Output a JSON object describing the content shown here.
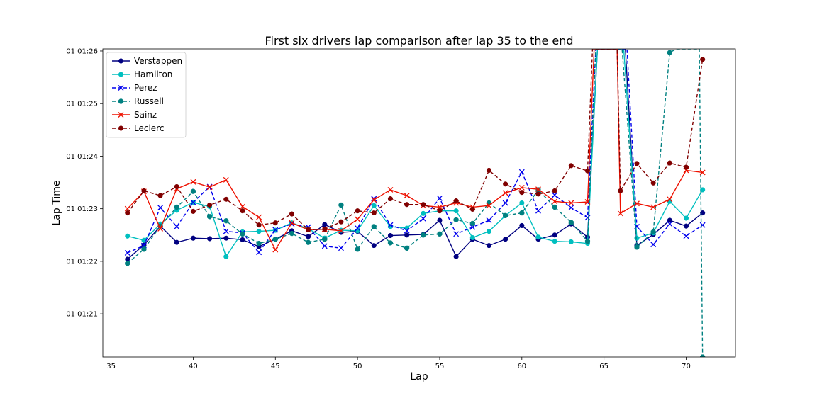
{
  "chart_data": {
    "type": "line",
    "title": "First six drivers lap comparison after lap 35 to the end",
    "xlabel": "Lap",
    "ylabel": "Lap Time",
    "xlim": [
      34.5,
      73
    ],
    "ylim": [
      80.18,
      86.04
    ],
    "x_ticks": [
      35,
      40,
      45,
      50,
      55,
      60,
      65,
      70
    ],
    "y_ticks": [
      {
        "value": 81,
        "label": "01 01:21"
      },
      {
        "value": 82,
        "label": "01 01:22"
      },
      {
        "value": 83,
        "label": "01 01:23"
      },
      {
        "value": 84,
        "label": "01 01:24"
      },
      {
        "value": 85,
        "label": "01 01:25"
      },
      {
        "value": 86,
        "label": "01 01:26"
      }
    ],
    "grid": false,
    "legend_position": "upper-left",
    "series": [
      {
        "name": "Verstappen",
        "color": "#000080",
        "marker": "circle",
        "dash": "solid",
        "points": [
          [
            36,
            82.04
          ],
          [
            37,
            82.31
          ],
          [
            38,
            82.67
          ],
          [
            39,
            82.36
          ],
          [
            40,
            82.44
          ],
          [
            41,
            82.43
          ],
          [
            42,
            82.44
          ],
          [
            43,
            82.41
          ],
          [
            44,
            82.28
          ],
          [
            45,
            82.42
          ],
          [
            46,
            82.58
          ],
          [
            47,
            82.47
          ],
          [
            48,
            82.7
          ],
          [
            49,
            82.55
          ],
          [
            50,
            82.57
          ],
          [
            51,
            82.3
          ],
          [
            52,
            82.49
          ],
          [
            53,
            82.5
          ],
          [
            54,
            82.51
          ],
          [
            55,
            82.78
          ],
          [
            56,
            82.09
          ],
          [
            57,
            82.42
          ],
          [
            58,
            82.3
          ],
          [
            59,
            82.42
          ],
          [
            60,
            82.68
          ],
          [
            61,
            82.42
          ],
          [
            62,
            82.5
          ],
          [
            63,
            82.71
          ],
          [
            64,
            82.46
          ],
          [
            64.6,
            86.04
          ],
          [
            66.3,
            86.04
          ],
          [
            67,
            82.3
          ],
          [
            68,
            82.51
          ],
          [
            69,
            82.78
          ],
          [
            70,
            82.67
          ],
          [
            71,
            82.92
          ]
        ]
      },
      {
        "name": "Hamilton",
        "color": "#00BFBF",
        "marker": "circle",
        "dash": "solid",
        "points": [
          [
            36,
            82.48
          ],
          [
            37,
            82.4
          ],
          [
            38,
            82.71
          ],
          [
            39,
            82.97
          ],
          [
            40,
            83.12
          ],
          [
            41,
            83.04
          ],
          [
            42,
            82.09
          ],
          [
            43,
            82.56
          ],
          [
            44,
            82.57
          ],
          [
            45,
            82.59
          ],
          [
            46,
            82.73
          ],
          [
            47,
            82.62
          ],
          [
            48,
            82.44
          ],
          [
            49,
            82.59
          ],
          [
            50,
            82.58
          ],
          [
            51,
            83.06
          ],
          [
            52,
            82.66
          ],
          [
            53,
            82.63
          ],
          [
            54,
            82.91
          ],
          [
            55,
            82.96
          ],
          [
            56,
            82.96
          ],
          [
            57,
            82.45
          ],
          [
            58,
            82.57
          ],
          [
            59,
            82.87
          ],
          [
            60,
            83.11
          ],
          [
            61,
            82.46
          ],
          [
            62,
            82.38
          ],
          [
            63,
            82.37
          ],
          [
            64,
            82.34
          ],
          [
            64.6,
            86.04
          ],
          [
            66.2,
            86.04
          ],
          [
            67,
            82.44
          ],
          [
            68,
            82.54
          ],
          [
            69,
            83.14
          ],
          [
            70,
            82.82
          ],
          [
            71,
            83.36
          ]
        ]
      },
      {
        "name": "Perez",
        "color": "#0000EE",
        "marker": "x",
        "dash": "dashed",
        "points": [
          [
            36,
            82.16
          ],
          [
            37,
            82.3
          ],
          [
            38,
            83.02
          ],
          [
            39,
            82.66
          ],
          [
            40,
            83.12
          ],
          [
            41,
            83.42
          ],
          [
            42,
            82.57
          ],
          [
            43,
            82.54
          ],
          [
            44,
            82.17
          ],
          [
            45,
            82.6
          ],
          [
            46,
            82.71
          ],
          [
            47,
            82.65
          ],
          [
            48,
            82.29
          ],
          [
            49,
            82.25
          ],
          [
            50,
            82.63
          ],
          [
            51,
            83.19
          ],
          [
            52,
            82.69
          ],
          [
            53,
            82.58
          ],
          [
            54,
            82.81
          ],
          [
            55,
            83.2
          ],
          [
            56,
            82.52
          ],
          [
            57,
            82.65
          ],
          [
            58,
            82.78
          ],
          [
            59,
            83.11
          ],
          [
            60,
            83.7
          ],
          [
            61,
            82.96
          ],
          [
            62,
            83.26
          ],
          [
            63,
            83.02
          ],
          [
            64,
            82.83
          ],
          [
            64.5,
            86.04
          ],
          [
            66.4,
            86.04
          ],
          [
            67,
            82.66
          ],
          [
            68,
            82.32
          ],
          [
            69,
            82.71
          ],
          [
            70,
            82.48
          ],
          [
            71,
            82.69
          ]
        ]
      },
      {
        "name": "Russell",
        "color": "#008080",
        "marker": "octagon",
        "dash": "dashed",
        "points": [
          [
            36,
            81.96
          ],
          [
            37,
            82.23
          ],
          [
            38,
            82.67
          ],
          [
            39,
            83.03
          ],
          [
            40,
            83.33
          ],
          [
            41,
            82.85
          ],
          [
            42,
            82.77
          ],
          [
            43,
            82.52
          ],
          [
            44,
            82.34
          ],
          [
            45,
            82.42
          ],
          [
            46,
            82.53
          ],
          [
            47,
            82.36
          ],
          [
            48,
            82.42
          ],
          [
            49,
            83.07
          ],
          [
            50,
            82.23
          ],
          [
            51,
            82.66
          ],
          [
            52,
            82.35
          ],
          [
            53,
            82.25
          ],
          [
            54,
            82.5
          ],
          [
            55,
            82.52
          ],
          [
            56,
            82.79
          ],
          [
            57,
            82.72
          ],
          [
            58,
            83.11
          ],
          [
            59,
            82.87
          ],
          [
            60,
            82.92
          ],
          [
            61,
            83.36
          ],
          [
            62,
            83.03
          ],
          [
            63,
            82.74
          ],
          [
            64,
            82.38
          ],
          [
            64.5,
            86.04
          ],
          [
            66.1,
            86.04
          ],
          [
            67,
            82.27
          ],
          [
            68,
            82.56
          ],
          [
            69,
            85.97
          ],
          [
            69.4,
            86.04
          ],
          [
            70.8,
            86.04
          ],
          [
            71,
            80.18
          ]
        ]
      },
      {
        "name": "Sainz",
        "color": "#EE1100",
        "marker": "x",
        "dash": "solid",
        "points": [
          [
            36,
            83.0
          ],
          [
            37,
            83.33
          ],
          [
            38,
            82.62
          ],
          [
            39,
            83.38
          ],
          [
            40,
            83.51
          ],
          [
            41,
            83.41
          ],
          [
            42,
            83.55
          ],
          [
            43,
            83.04
          ],
          [
            44,
            82.84
          ],
          [
            45,
            82.22
          ],
          [
            46,
            82.73
          ],
          [
            47,
            82.6
          ],
          [
            48,
            82.61
          ],
          [
            49,
            82.58
          ],
          [
            50,
            82.8
          ],
          [
            51,
            83.17
          ],
          [
            52,
            83.36
          ],
          [
            53,
            83.25
          ],
          [
            54,
            83.06
          ],
          [
            55,
            83.03
          ],
          [
            56,
            83.11
          ],
          [
            57,
            83.03
          ],
          [
            58,
            83.06
          ],
          [
            59,
            83.3
          ],
          [
            60,
            83.4
          ],
          [
            61,
            83.37
          ],
          [
            62,
            83.14
          ],
          [
            63,
            83.11
          ],
          [
            64,
            83.13
          ],
          [
            64.4,
            86.04
          ],
          [
            65.8,
            86.04
          ],
          [
            66,
            82.91
          ],
          [
            67,
            83.1
          ],
          [
            68,
            83.03
          ],
          [
            69,
            83.18
          ],
          [
            70,
            83.73
          ],
          [
            71,
            83.69
          ]
        ]
      },
      {
        "name": "Leclerc",
        "color": "#800000",
        "marker": "circle",
        "dash": "dashed",
        "points": [
          [
            36,
            82.92
          ],
          [
            37,
            83.34
          ],
          [
            38,
            83.25
          ],
          [
            39,
            83.42
          ],
          [
            40,
            82.95
          ],
          [
            41,
            83.07
          ],
          [
            42,
            83.18
          ],
          [
            43,
            82.96
          ],
          [
            44,
            82.69
          ],
          [
            45,
            82.73
          ],
          [
            46,
            82.9
          ],
          [
            47,
            82.6
          ],
          [
            48,
            82.61
          ],
          [
            49,
            82.75
          ],
          [
            50,
            82.96
          ],
          [
            51,
            82.92
          ],
          [
            52,
            83.19
          ],
          [
            53,
            83.08
          ],
          [
            54,
            83.08
          ],
          [
            55,
            82.96
          ],
          [
            56,
            83.15
          ],
          [
            57,
            82.99
          ],
          [
            58,
            83.73
          ],
          [
            59,
            83.47
          ],
          [
            60,
            83.31
          ],
          [
            61,
            83.28
          ],
          [
            62,
            83.34
          ],
          [
            63,
            83.82
          ],
          [
            64,
            83.72
          ],
          [
            64.3,
            86.04
          ],
          [
            65.8,
            86.04
          ],
          [
            66,
            83.34
          ],
          [
            67,
            83.86
          ],
          [
            68,
            83.49
          ],
          [
            69,
            83.87
          ],
          [
            70,
            83.79
          ],
          [
            71,
            85.84
          ]
        ]
      }
    ]
  }
}
